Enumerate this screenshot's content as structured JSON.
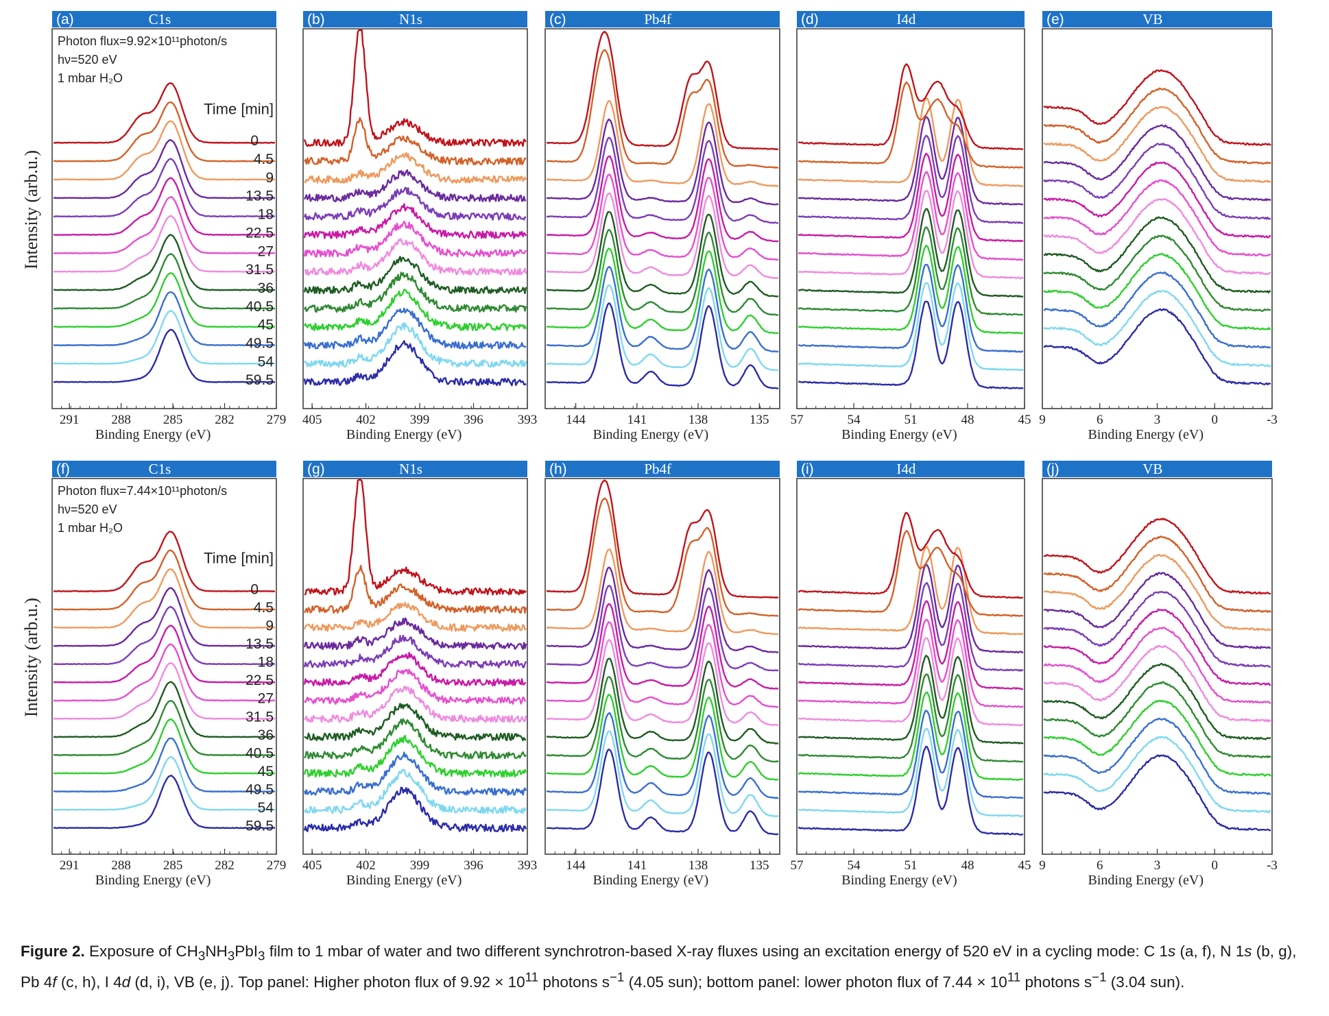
{
  "figure": {
    "caption": {
      "label": "Figure 2.",
      "text": "Exposure of CH3NH3PbI3 film to 1 mbar of water and two different synchrotron-based X-ray fluxes using an excitation energy of 520 eV in a cycling mode: C 1s (a, f), N 1s (b, g), Pb 4f (c, h), I 4d (d, i), VB (e, j). Top panel: Higher photon flux of 9.92 × 10^11 photons s^−1 (4.05 sun); bottom panel: lower photon flux of 7.44 × 10^11 photons s^−1 (3.04 sun)."
    },
    "ylabel": "Intensity (arb.u.)",
    "xlabel": "Binding Energy (eV)",
    "time_legend": {
      "title": "Time [min]",
      "values": [
        "0",
        "4.5",
        "9",
        "13.5",
        "18",
        "22.5",
        "27",
        "31.5",
        "36",
        "40.5",
        "45",
        "49.5",
        "54",
        "59.5"
      ],
      "colors": [
        "#c0141c",
        "#d2622a",
        "#ee9a5e",
        "#6a2a9e",
        "#7b3db8",
        "#c81ba8",
        "#e64fcf",
        "#f08ae0",
        "#1e5c22",
        "#2f8a32",
        "#2ed02e",
        "#3a6fd0",
        "#7fd8f0",
        "#2c2ca8"
      ]
    },
    "top_info": [
      "Photon flux=9.92×10¹¹photon/s",
      "hν=520 eV",
      "1 mbar H₂O"
    ],
    "bottom_info": [
      "Photon flux=7.44×10¹¹photon/s",
      "hν=520 eV",
      "1 mbar H₂O"
    ]
  },
  "chart_data": [
    {
      "panel": "(a)",
      "title": "C1s",
      "type": "line",
      "xlim": [
        292,
        279
      ],
      "xticks": [
        291,
        288,
        285,
        282,
        279
      ],
      "xlabel": "Binding Energy (eV)",
      "ylabel": "Intensity (arb.u.)",
      "series_by_time_min": [
        "0",
        "4.5",
        "9",
        "13.5",
        "18",
        "22.5",
        "27",
        "31.5",
        "36",
        "40.5",
        "45",
        "49.5",
        "54",
        "59.5"
      ],
      "peak_eV": [
        285.0
      ]
    },
    {
      "panel": "(b)",
      "title": "N1s",
      "type": "line",
      "xlim": [
        405.5,
        393
      ],
      "xticks": [
        405,
        402,
        399,
        396,
        393
      ],
      "xlabel": "Binding Energy (eV)",
      "peak_eV": [
        402.2,
        400.0
      ]
    },
    {
      "panel": "(c)",
      "title": "Pb4f",
      "type": "line",
      "xlim": [
        145.5,
        134
      ],
      "xticks": [
        144,
        141,
        138,
        135
      ],
      "xlabel": "Binding Energy (eV)",
      "peak_eV": [
        142.6,
        137.8
      ]
    },
    {
      "panel": "(d)",
      "title": "I4d",
      "type": "line",
      "xlim": [
        57,
        45
      ],
      "xticks": [
        57,
        54,
        51,
        48,
        45
      ],
      "xlabel": "Binding Energy (eV)",
      "peak_eV": [
        50.6,
        49.0
      ]
    },
    {
      "panel": "(e)",
      "title": "VB",
      "type": "line",
      "xlim": [
        9,
        -3
      ],
      "xticks": [
        9,
        6,
        3,
        0,
        -3
      ],
      "xlabel": "Binding Energy (eV)",
      "peak_eV": [
        3.0
      ]
    },
    {
      "panel": "(f)",
      "title": "C1s",
      "type": "line",
      "xlim": [
        292,
        279
      ],
      "xticks": [
        291,
        288,
        285,
        282,
        279
      ],
      "xlabel": "Binding Energy (eV)",
      "ylabel": "Intensity (arb.u.)",
      "series_by_time_min": [
        "0",
        "4.5",
        "9",
        "13.5",
        "18",
        "22.5",
        "27",
        "31.5",
        "36",
        "40.5",
        "45",
        "49.5",
        "54",
        "59.5"
      ],
      "peak_eV": [
        285.0
      ]
    },
    {
      "panel": "(g)",
      "title": "N1s",
      "type": "line",
      "xlim": [
        405.5,
        393
      ],
      "xticks": [
        405,
        402,
        399,
        396,
        393
      ],
      "xlabel": "Binding Energy (eV)",
      "peak_eV": [
        402.2,
        400.0
      ]
    },
    {
      "panel": "(h)",
      "title": "Pb4f",
      "type": "line",
      "xlim": [
        145.5,
        134
      ],
      "xticks": [
        144,
        141,
        138,
        135
      ],
      "xlabel": "Binding Energy (eV)",
      "peak_eV": [
        142.6,
        137.8
      ]
    },
    {
      "panel": "(i)",
      "title": "I4d",
      "type": "line",
      "xlim": [
        57,
        45
      ],
      "xticks": [
        57,
        54,
        51,
        48,
        45
      ],
      "xlabel": "Binding Energy (eV)",
      "peak_eV": [
        50.6,
        49.0
      ]
    },
    {
      "panel": "(j)",
      "title": "VB",
      "type": "line",
      "xlim": [
        9,
        -3
      ],
      "xticks": [
        9,
        6,
        3,
        0,
        -3
      ],
      "xlabel": "Binding Energy (eV)",
      "peak_eV": [
        3.0
      ]
    }
  ]
}
